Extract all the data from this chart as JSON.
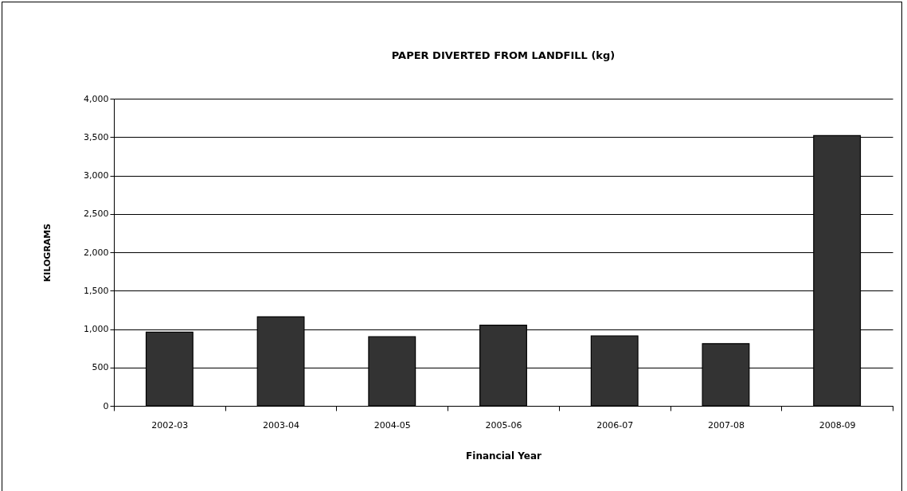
{
  "chart_data": {
    "type": "bar",
    "title": "PAPER DIVERTED FROM LANDFILL (kg)",
    "xlabel": "Financial Year",
    "ylabel": "KILOGRAMS",
    "categories": [
      "2002-03",
      "2003-04",
      "2004-05",
      "2005-06",
      "2006-07",
      "2007-08",
      "2008-09"
    ],
    "values": [
      960,
      1160,
      900,
      1050,
      910,
      810,
      3520
    ],
    "color": "#333333",
    "ylim": [
      0,
      4000
    ],
    "yticks": [
      0,
      500,
      {
        "value": 1000,
        "label": "1,000"
      },
      {
        "value": 1500,
        "label": "1,500"
      },
      {
        "value": 2000,
        "label": "2,000"
      },
      {
        "value": 2500,
        "label": "2,500"
      },
      {
        "value": 3000,
        "label": "3,000"
      },
      {
        "value": 3500,
        "label": "3,500"
      },
      {
        "value": 4000,
        "label": "4,000"
      }
    ],
    "grid": "y"
  }
}
